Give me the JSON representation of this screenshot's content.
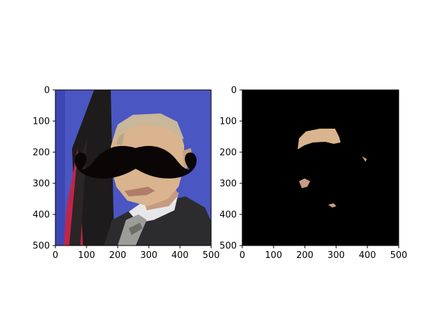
{
  "colors": {
    "figure_background": "#ffffff",
    "axes_frame": "#000000",
    "mask_background": "#000000",
    "flag_blue_background": "#4a56c2",
    "flag_black_stripe": "#1e1b1c",
    "flag_red_stripe": "#c0254a",
    "skin": "#d9b48e",
    "hair": "#c8b79a",
    "suit": "#2c2c2e",
    "shirt": "#e7e7ea",
    "tie": "#9c9c98",
    "mustache": "#0a0606"
  },
  "chart_data": [
    {
      "type": "image",
      "title": "",
      "xlabel": "",
      "ylabel": "",
      "xlim": [
        0,
        500
      ],
      "ylim": [
        500,
        0
      ],
      "xticks": [
        "0",
        "100",
        "200",
        "300",
        "400",
        "500"
      ],
      "yticks": [
        "0",
        "100",
        "200",
        "300",
        "400",
        "500"
      ],
      "content": "photo of a man in a suit in front of a flag, with a black mustache overlay"
    },
    {
      "type": "image",
      "title": "",
      "xlabel": "",
      "ylabel": "",
      "xlim": [
        0,
        500
      ],
      "ylim": [
        500,
        0
      ],
      "xticks": [
        "0",
        "100",
        "200",
        "300",
        "400",
        "500"
      ],
      "yticks": [
        "0",
        "100",
        "200",
        "300",
        "400",
        "500"
      ],
      "content": "skin-color segmentation mask: skin regions on black background"
    }
  ]
}
